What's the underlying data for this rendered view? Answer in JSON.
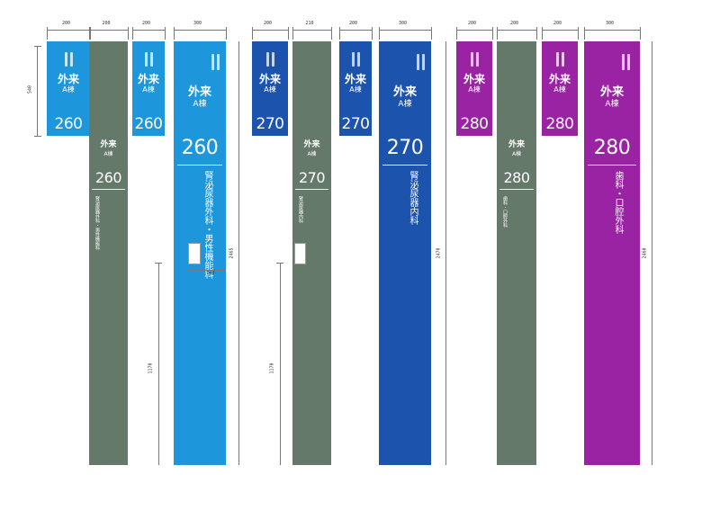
{
  "colors": {
    "light_blue": "#1e96dc",
    "gray_green": "#65796b",
    "dark_blue": "#1c53ad",
    "purple": "#9a23a4",
    "white": "#ffffff"
  },
  "signs": [
    {
      "kind": "small",
      "color": "#1e96dc",
      "label1": "外来",
      "label2": "A棟",
      "number": "260",
      "icon": "double-bar-icon"
    },
    {
      "kind": "pole",
      "color": "#65796b",
      "label1": "外来",
      "label2": "A棟",
      "number": "260",
      "dept": "腎泌尿器外科・男性機能科",
      "icon": ""
    },
    {
      "kind": "small",
      "color": "#1e96dc",
      "label1": "外来",
      "label2": "A棟",
      "number": "260",
      "icon": "double-bar-icon"
    },
    {
      "kind": "wide",
      "color": "#1e96dc",
      "label1": "外来",
      "label2": "A棟",
      "number": "260",
      "dept": "腎泌尿器外科・男性機能科",
      "icon": "double-bar-icon"
    },
    {
      "kind": "small",
      "color": "#1c53ad",
      "label1": "外来",
      "label2": "A棟",
      "number": "270",
      "icon": "double-bar-icon"
    },
    {
      "kind": "pole",
      "color": "#65796b",
      "label1": "外来",
      "label2": "A棟",
      "number": "270",
      "dept": "腎泌尿器内科",
      "icon": ""
    },
    {
      "kind": "small",
      "color": "#1c53ad",
      "label1": "外来",
      "label2": "A棟",
      "number": "270",
      "icon": "double-bar-icon"
    },
    {
      "kind": "wide",
      "color": "#1c53ad",
      "label1": "外来",
      "label2": "A棟",
      "number": "270",
      "dept": "腎泌尿器内科",
      "icon": "double-bar-icon"
    },
    {
      "kind": "small",
      "color": "#9a23a4",
      "label1": "外来",
      "label2": "A棟",
      "number": "280",
      "icon": "double-bar-icon"
    },
    {
      "kind": "pole",
      "color": "#65796b",
      "label1": "外来",
      "label2": "A棟",
      "number": "280",
      "dept": "歯科・口腔外科",
      "icon": ""
    },
    {
      "kind": "small",
      "color": "#9a23a4",
      "label1": "外来",
      "label2": "A棟",
      "number": "280",
      "icon": "double-bar-icon"
    },
    {
      "kind": "wide",
      "color": "#9a23a4",
      "label1": "外来",
      "label2": "A棟",
      "number": "280",
      "dept": "歯科・口腔外科",
      "icon": "double-bar-icon"
    }
  ],
  "dimensions": {
    "top_widths": [
      "200",
      "200",
      "200",
      "300",
      "200",
      "210",
      "200",
      "300",
      "200",
      "200",
      "200",
      "300"
    ],
    "small_height": "540",
    "window_width": "140",
    "height_1": "1170",
    "height_2": "1170",
    "total_1": "2465",
    "total_2": "2470",
    "total_3": "2460"
  }
}
